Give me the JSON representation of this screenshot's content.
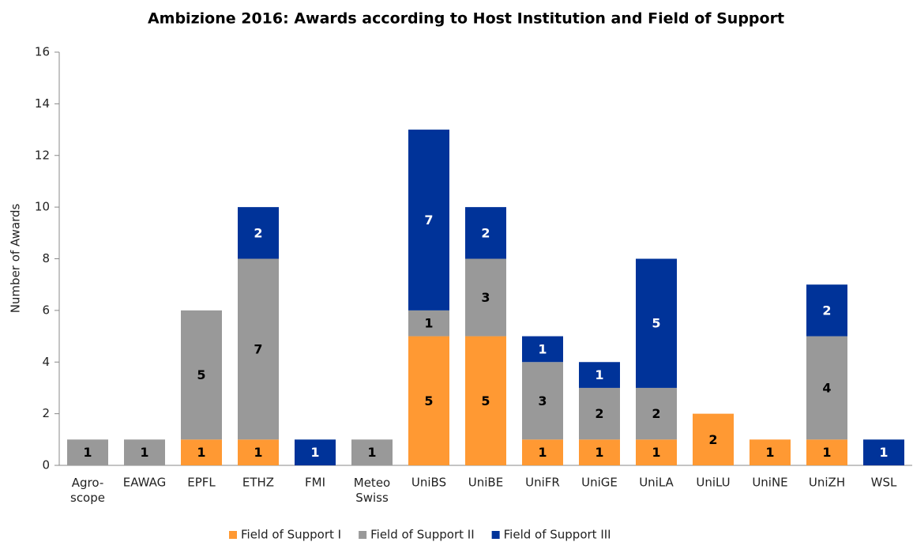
{
  "chart_data": {
    "type": "stacked_bar",
    "title": "Ambizione 2016: Awards according to Host Institution and Field of Support",
    "y_label": "Number of Awards",
    "categories": [
      "Agro-\nscope",
      "EAWAG",
      "EPFL",
      "ETHZ",
      "FMI",
      "Meteo\nSwiss",
      "UniBS",
      "UniBE",
      "UniFR",
      "UniGE",
      "UniLA",
      "UniLU",
      "UniNE",
      "UniZH",
      "WSL"
    ],
    "series": [
      {
        "name": "Field of Support I",
        "color": "#ff9933",
        "label_color": "#000000",
        "values": [
          0,
          0,
          1,
          1,
          0,
          0,
          5,
          5,
          1,
          1,
          1,
          2,
          1,
          1,
          0
        ]
      },
      {
        "name": "Field of Support II",
        "color": "#999999",
        "label_color": "#000000",
        "values": [
          1,
          1,
          5,
          7,
          0,
          1,
          1,
          3,
          3,
          2,
          2,
          0,
          0,
          4,
          0
        ]
      },
      {
        "name": "Field of Support III",
        "color": "#003399",
        "label_color": "#ffffff",
        "values": [
          0,
          0,
          0,
          2,
          1,
          0,
          7,
          2,
          1,
          1,
          5,
          0,
          0,
          2,
          1
        ]
      }
    ],
    "ylim": [
      0,
      16
    ],
    "yticks": [
      0,
      2,
      4,
      6,
      8,
      10,
      12,
      14,
      16
    ],
    "grid": false,
    "legend": "bottom"
  }
}
